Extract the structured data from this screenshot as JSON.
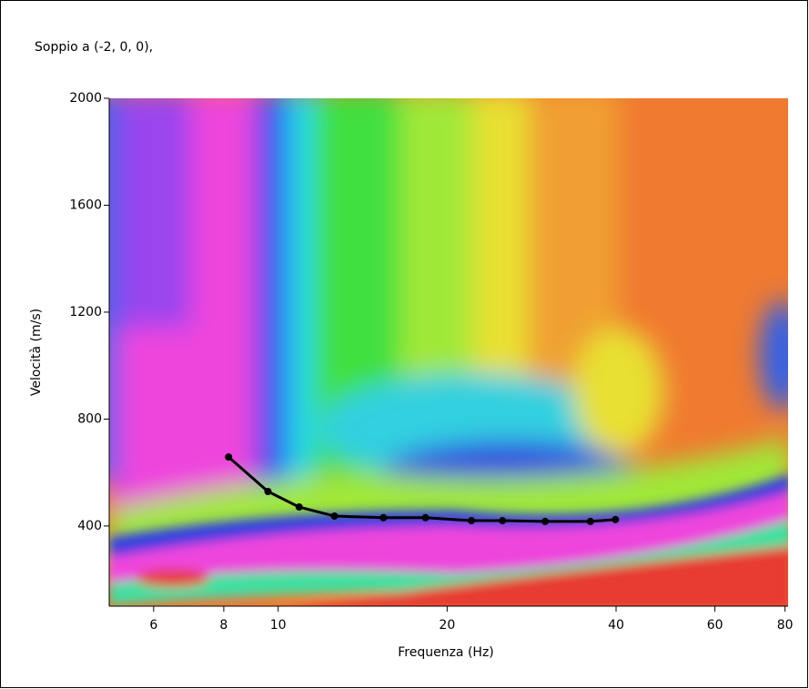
{
  "chart_data": {
    "type": "line",
    "title": "Soppio a (-2, 0, 0),",
    "x_label": "Frequenza (Hz)",
    "y_label": "Velocità (m/s)",
    "x": [
      8.16,
      9.59,
      10.9,
      12.6,
      15.4,
      18.3,
      22.1,
      25.1,
      29.9,
      36.0,
      39.9
    ],
    "values": [
      658,
      529,
      471,
      437,
      431,
      431,
      420,
      420,
      417,
      417,
      424
    ],
    "color": "#000000",
    "xscale": "log",
    "xlim": [
      5,
      81
    ],
    "ylim": [
      100,
      2000
    ],
    "xticks": [
      6,
      8,
      10,
      20,
      40,
      60,
      80
    ],
    "yticks": [
      400,
      800,
      1200,
      1600,
      2000
    ]
  }
}
